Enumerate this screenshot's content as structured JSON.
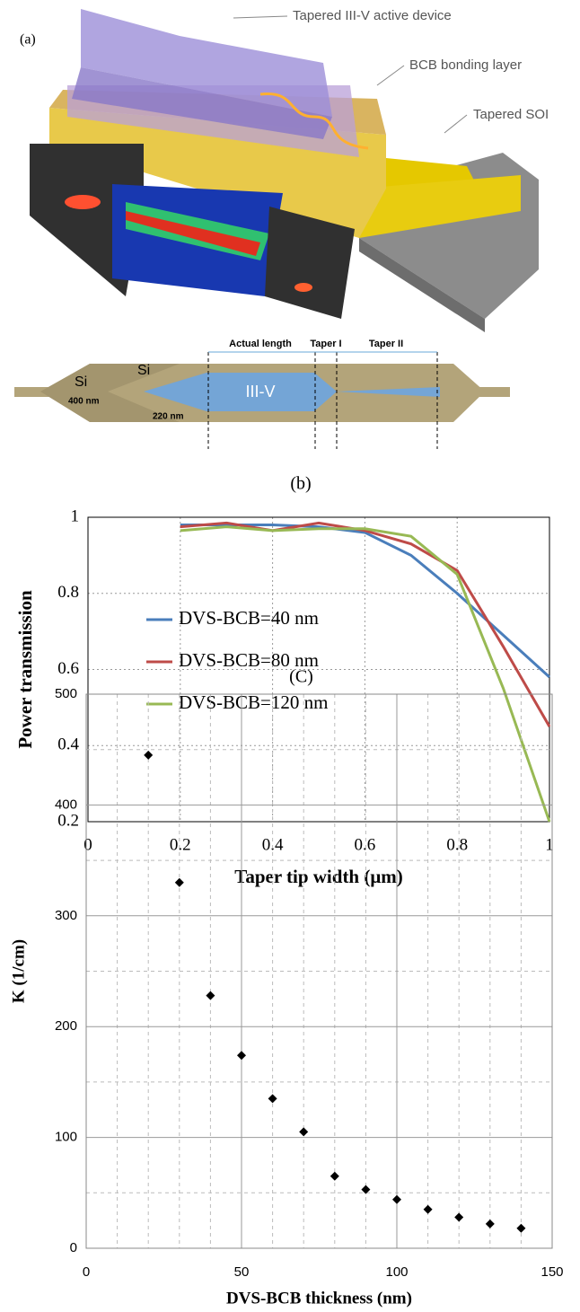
{
  "diagram": {
    "panel_label": "(a)",
    "labels": [
      "Tapered III-V active device",
      "BCB bonding layer",
      "Tapered SOI"
    ],
    "section": {
      "actual_length": "Actual length",
      "taper1": "Taper I",
      "taper2": "Taper II",
      "si_left": "Si",
      "si_inner": "Si",
      "w400": "400 nm",
      "w220": "220 nm",
      "core": "III-V"
    }
  },
  "chart_data": [
    {
      "type": "line",
      "title": "(b)",
      "x_label": "Taper tip width (μm)",
      "y_label": "Power transmission",
      "x": [
        0.2,
        0.3,
        0.4,
        0.5,
        0.6,
        0.7,
        0.8,
        0.9,
        1
      ],
      "series": [
        {
          "name": "DVS-BCB=40 nm",
          "color": "#4a7ebb",
          "values": [
            0.98,
            0.98,
            0.98,
            0.975,
            0.96,
            0.9,
            0.8,
            0.69,
            0.58
          ]
        },
        {
          "name": "DVS-BCB=80 nm",
          "color": "#be4b48",
          "values": [
            0.975,
            0.985,
            0.965,
            0.985,
            0.965,
            0.93,
            0.86,
            0.66,
            0.45
          ]
        },
        {
          "name": "DVS-BCB=120 nm",
          "color": "#98b954",
          "values": [
            0.965,
            0.975,
            0.965,
            0.97,
            0.97,
            0.95,
            0.85,
            0.55,
            0.2
          ]
        }
      ],
      "xlim": [
        0,
        1
      ],
      "xticks": [
        0,
        0.2,
        0.4,
        0.6,
        0.8,
        1
      ],
      "ylim": [
        0.2,
        1
      ],
      "yticks": [
        0.2,
        0.4,
        0.6,
        0.8,
        1
      ],
      "grid": true,
      "legend": "left"
    },
    {
      "type": "scatter",
      "title": "(C)",
      "x_label": "DVS-BCB thickness (nm)",
      "y_label": "K (1/cm)",
      "color": "#000000",
      "x": [
        20,
        30,
        40,
        50,
        60,
        70,
        80,
        90,
        100,
        110,
        120,
        130,
        140
      ],
      "values": [
        445,
        330,
        228,
        174,
        135,
        105,
        65,
        53,
        44,
        35,
        28,
        22,
        18
      ],
      "xlim": [
        0,
        150
      ],
      "xticks": [
        0,
        50,
        100,
        150
      ],
      "ylim": [
        0,
        500
      ],
      "yticks": [
        0,
        100,
        200,
        300,
        400,
        500
      ],
      "minor_xticks": [
        10,
        20,
        30,
        40,
        60,
        70,
        80,
        90,
        110,
        120,
        130,
        140
      ],
      "minor_yticks": [
        50,
        150,
        250,
        350,
        450
      ],
      "grid": true
    }
  ]
}
